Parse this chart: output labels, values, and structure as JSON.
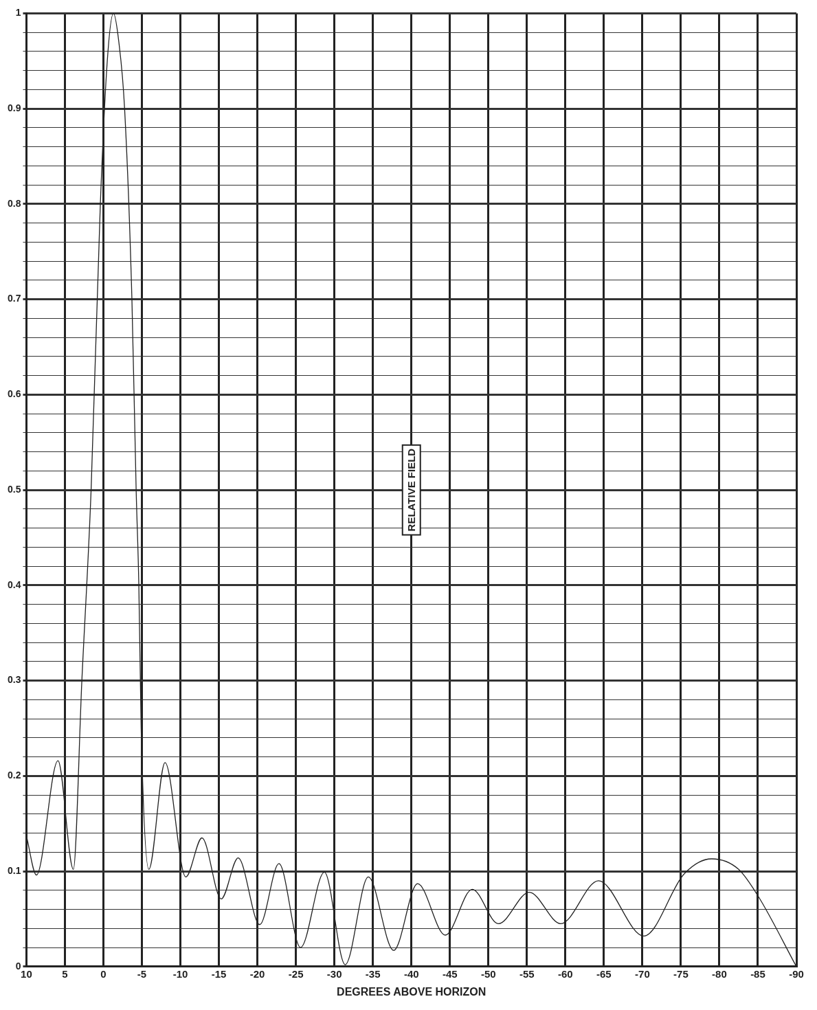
{
  "chart_data": {
    "type": "line",
    "xlabel": "DEGREES ABOVE HORIZON",
    "ylabel": "RELATIVE FIELD",
    "x": [
      10,
      8.7,
      5.9,
      3.9,
      2.8,
      1.6,
      0.4,
      -0.5,
      -1.3,
      -2.0,
      -2.75,
      -3.7,
      -4.25,
      -4.6,
      -4.9,
      -5.9,
      -8.0,
      -10.7,
      -12.8,
      -15.3,
      -17.5,
      -20.3,
      -22.8,
      -25.6,
      -28.7,
      -31.4,
      -34.4,
      -37.7,
      -40.8,
      -44.4,
      -47.9,
      -51.3,
      -55.3,
      -59.4,
      -64.3,
      -70.2,
      -75.4,
      -79.0,
      -82.5,
      -85.1,
      -90
    ],
    "series": [
      {
        "color": "#222222",
        "values": [
          0.137,
          0.096,
          0.216,
          0.102,
          0.3,
          0.5,
          0.8,
          0.95,
          1.0,
          0.97,
          0.9,
          0.7,
          0.5,
          0.4,
          0.25,
          0.102,
          0.214,
          0.094,
          0.135,
          0.071,
          0.114,
          0.044,
          0.108,
          0.02,
          0.099,
          0.002,
          0.094,
          0.017,
          0.087,
          0.033,
          0.081,
          0.045,
          0.078,
          0.045,
          0.09,
          0.032,
          0.097,
          0.113,
          0.102,
          0.073,
          0
        ]
      }
    ],
    "xlim": [
      10,
      -90
    ],
    "ylim": [
      0,
      1
    ],
    "xticks": [
      10,
      5,
      0,
      -5,
      -10,
      -15,
      -20,
      -25,
      -30,
      -35,
      -40,
      -45,
      -50,
      -55,
      -60,
      -65,
      -70,
      -75,
      -80,
      -85,
      -90
    ],
    "yticks": [
      0,
      {
        "value": 0.02,
        "label": null
      },
      {
        "value": 0.04,
        "label": null
      },
      {
        "value": 0.06,
        "label": null
      },
      {
        "value": 0.08,
        "label": null
      },
      0.1,
      {
        "value": 0.12,
        "label": null
      },
      {
        "value": 0.14,
        "label": null
      },
      {
        "value": 0.16,
        "label": null
      },
      {
        "value": 0.18,
        "label": null
      },
      0.2,
      {
        "value": 0.22,
        "label": null
      },
      {
        "value": 0.24,
        "label": null
      },
      {
        "value": 0.26,
        "label": null
      },
      {
        "value": 0.28,
        "label": null
      },
      0.3,
      {
        "value": 0.32,
        "label": null
      },
      {
        "value": 0.34,
        "label": null
      },
      {
        "value": 0.36,
        "label": null
      },
      {
        "value": 0.38,
        "label": null
      },
      0.4,
      {
        "value": 0.42,
        "label": null
      },
      {
        "value": 0.44,
        "label": null
      },
      {
        "value": 0.46,
        "label": null
      },
      {
        "value": 0.48,
        "label": null
      },
      0.5,
      {
        "value": 0.52,
        "label": null
      },
      {
        "value": 0.54,
        "label": null
      },
      {
        "value": 0.56,
        "label": null
      },
      {
        "value": 0.58,
        "label": null
      },
      0.6,
      {
        "value": 0.62,
        "label": null
      },
      {
        "value": 0.64,
        "label": null
      },
      {
        "value": 0.66,
        "label": null
      },
      {
        "value": 0.68,
        "label": null
      },
      0.7,
      {
        "value": 0.72,
        "label": null
      },
      {
        "value": 0.74,
        "label": null
      },
      {
        "value": 0.76,
        "label": null
      },
      {
        "value": 0.78,
        "label": null
      },
      0.8,
      {
        "value": 0.82,
        "label": null
      },
      {
        "value": 0.84,
        "label": null
      },
      {
        "value": 0.86,
        "label": null
      },
      {
        "value": 0.88,
        "label": null
      },
      0.9,
      {
        "value": 0.92,
        "label": null
      },
      {
        "value": 0.94,
        "label": null
      },
      {
        "value": 0.96,
        "label": null
      },
      {
        "value": 0.98,
        "label": null
      },
      1
    ],
    "grid": true,
    "legend": false,
    "marker": "none",
    "line_style": "solid"
  }
}
